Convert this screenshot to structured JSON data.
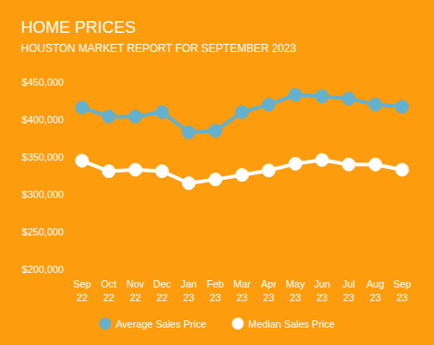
{
  "chart_data": {
    "type": "line",
    "title": "HOME PRICES",
    "subtitle": "HOUSTON MARKET REPORT FOR SEPTEMBER 2023",
    "categories": [
      "Sep 22",
      "Oct 22",
      "Nov 22",
      "Dec 22",
      "Jan 23",
      "Feb 23",
      "Mar 23",
      "Apr 23",
      "May 23",
      "Jun 23",
      "Jul 23",
      "Aug 23",
      "Sep 23"
    ],
    "series": [
      {
        "name": "Average Sales Price",
        "color": "#64b1cf",
        "values": [
          416000,
          404000,
          404000,
          410000,
          383000,
          385000,
          410000,
          420000,
          433000,
          431000,
          428000,
          420000,
          417000
        ]
      },
      {
        "name": "Median Sales Price",
        "color": "#ffffff",
        "values": [
          345000,
          331000,
          333000,
          331000,
          315000,
          320000,
          326000,
          332000,
          341000,
          346000,
          340000,
          340000,
          333000
        ]
      }
    ],
    "ylim": [
      200000,
      450000
    ],
    "yticks": [
      {
        "value": 200000,
        "label": "$200,000"
      },
      {
        "value": 250000,
        "label": "$250,000"
      },
      {
        "value": 300000,
        "label": "$300,000"
      },
      {
        "value": 350000,
        "label": "$350,000"
      },
      {
        "value": 400000,
        "label": "$400,000"
      },
      {
        "value": 450000,
        "label": "$450,000"
      }
    ],
    "grid": false,
    "legend": "bottom",
    "marker": "circle"
  }
}
